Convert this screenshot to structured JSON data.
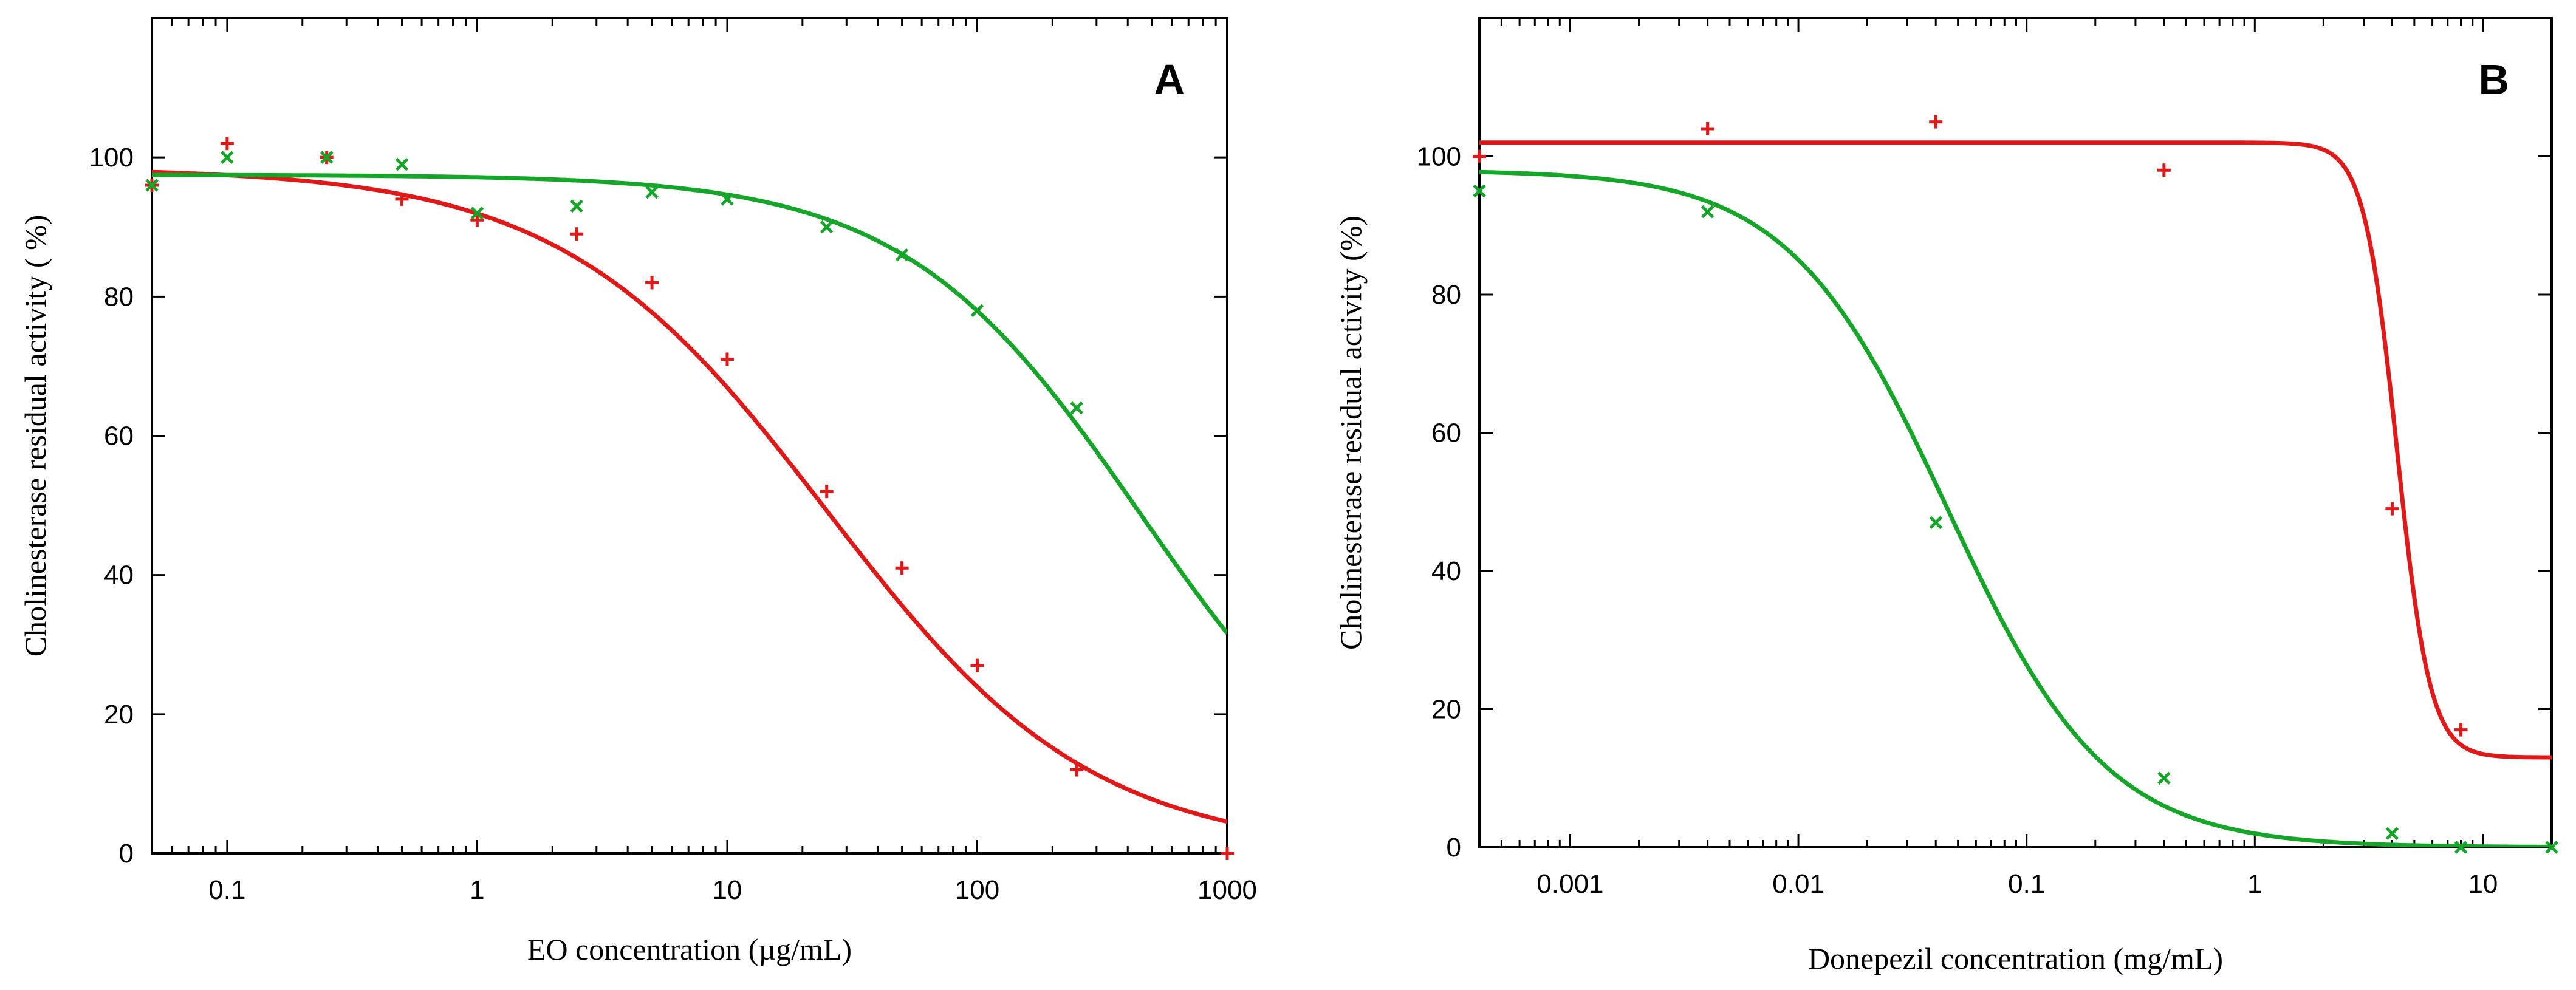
{
  "colors": {
    "red_series": "#e01818",
    "green_series": "#15a528",
    "axis": "#000000"
  },
  "chart_data": [
    {
      "type": "scatter",
      "panel_label": "A",
      "title": "",
      "xlabel": "EO concentration (µg/mL)",
      "ylabel": "Cholinesterase residual activity ( %)",
      "xscale": "log",
      "xlim": [
        0.05,
        1000
      ],
      "ylim": [
        0,
        120
      ],
      "x_ticks": [
        {
          "value": 0.1,
          "label": "0.1"
        },
        {
          "value": 1,
          "label": "1"
        },
        {
          "value": 10,
          "label": "10"
        },
        {
          "value": 100,
          "label": "100"
        },
        {
          "value": 1000,
          "label": "1000"
        }
      ],
      "y_ticks": [
        {
          "value": 0,
          "label": "0"
        },
        {
          "value": 20,
          "label": "20"
        },
        {
          "value": 40,
          "label": "40"
        },
        {
          "value": 60,
          "label": "60"
        },
        {
          "value": 80,
          "label": "80"
        },
        {
          "value": 100,
          "label": "100"
        }
      ],
      "series": [
        {
          "name": "red",
          "color": "#e01818",
          "marker": "+",
          "points": [
            [
              0.05,
              96
            ],
            [
              0.1,
              102
            ],
            [
              0.25,
              100
            ],
            [
              0.5,
              94
            ],
            [
              1,
              91
            ],
            [
              2.5,
              89
            ],
            [
              5,
              82
            ],
            [
              10,
              71
            ],
            [
              25,
              52
            ],
            [
              50,
              41
            ],
            [
              100,
              27
            ],
            [
              250,
              12
            ],
            [
              1000,
              0
            ]
          ],
          "fit": {
            "type": "logistic",
            "top": 98.5,
            "bottom": 0,
            "ic50": 25,
            "hill": 0.82
          }
        },
        {
          "name": "green",
          "color": "#15a528",
          "marker": "x",
          "points": [
            [
              0.05,
              96
            ],
            [
              0.1,
              100
            ],
            [
              0.25,
              100
            ],
            [
              0.5,
              99
            ],
            [
              1,
              92
            ],
            [
              2.5,
              93
            ],
            [
              5,
              95
            ],
            [
              10,
              94
            ],
            [
              25,
              90
            ],
            [
              50,
              86
            ],
            [
              100,
              78
            ],
            [
              250,
              64
            ]
          ],
          "fit": {
            "type": "logistic",
            "top": 97.5,
            "bottom": 0,
            "ic50": 450,
            "hill": 0.92
          }
        }
      ]
    },
    {
      "type": "scatter",
      "panel_label": "B",
      "title": "",
      "xlabel": "Donepezil concentration (mg/mL)",
      "ylabel": "Cholinesterase residual activity (%)",
      "xscale": "log",
      "xlim": [
        0.0004,
        20
      ],
      "ylim": [
        0,
        120
      ],
      "x_ticks": [
        {
          "value": 0.001,
          "label": "0.001"
        },
        {
          "value": 0.01,
          "label": "0.01"
        },
        {
          "value": 0.1,
          "label": "0.1"
        },
        {
          "value": 1,
          "label": "1"
        },
        {
          "value": 10,
          "label": "10"
        }
      ],
      "y_ticks": [
        {
          "value": 0,
          "label": "0"
        },
        {
          "value": 20,
          "label": "20"
        },
        {
          "value": 40,
          "label": "40"
        },
        {
          "value": 60,
          "label": "60"
        },
        {
          "value": 80,
          "label": "80"
        },
        {
          "value": 100,
          "label": "100"
        }
      ],
      "series": [
        {
          "name": "red",
          "color": "#e01818",
          "marker": "+",
          "points": [
            [
              0.0004,
              100
            ],
            [
              0.004,
              104
            ],
            [
              0.04,
              105
            ],
            [
              0.4,
              98
            ],
            [
              4,
              49
            ],
            [
              8,
              17
            ]
          ],
          "fit": {
            "type": "logistic",
            "top": 102,
            "bottom": 13,
            "ic50": 4.2,
            "hill": 6
          }
        },
        {
          "name": "green",
          "color": "#15a528",
          "marker": "x",
          "points": [
            [
              0.0004,
              95
            ],
            [
              0.004,
              92
            ],
            [
              0.04,
              47
            ],
            [
              0.4,
              10
            ],
            [
              4,
              2
            ],
            [
              8,
              0
            ],
            [
              20,
              0
            ]
          ],
          "fit": {
            "type": "logistic",
            "top": 98,
            "bottom": 0,
            "ic50": 0.045,
            "hill": 1.25
          }
        }
      ]
    }
  ]
}
